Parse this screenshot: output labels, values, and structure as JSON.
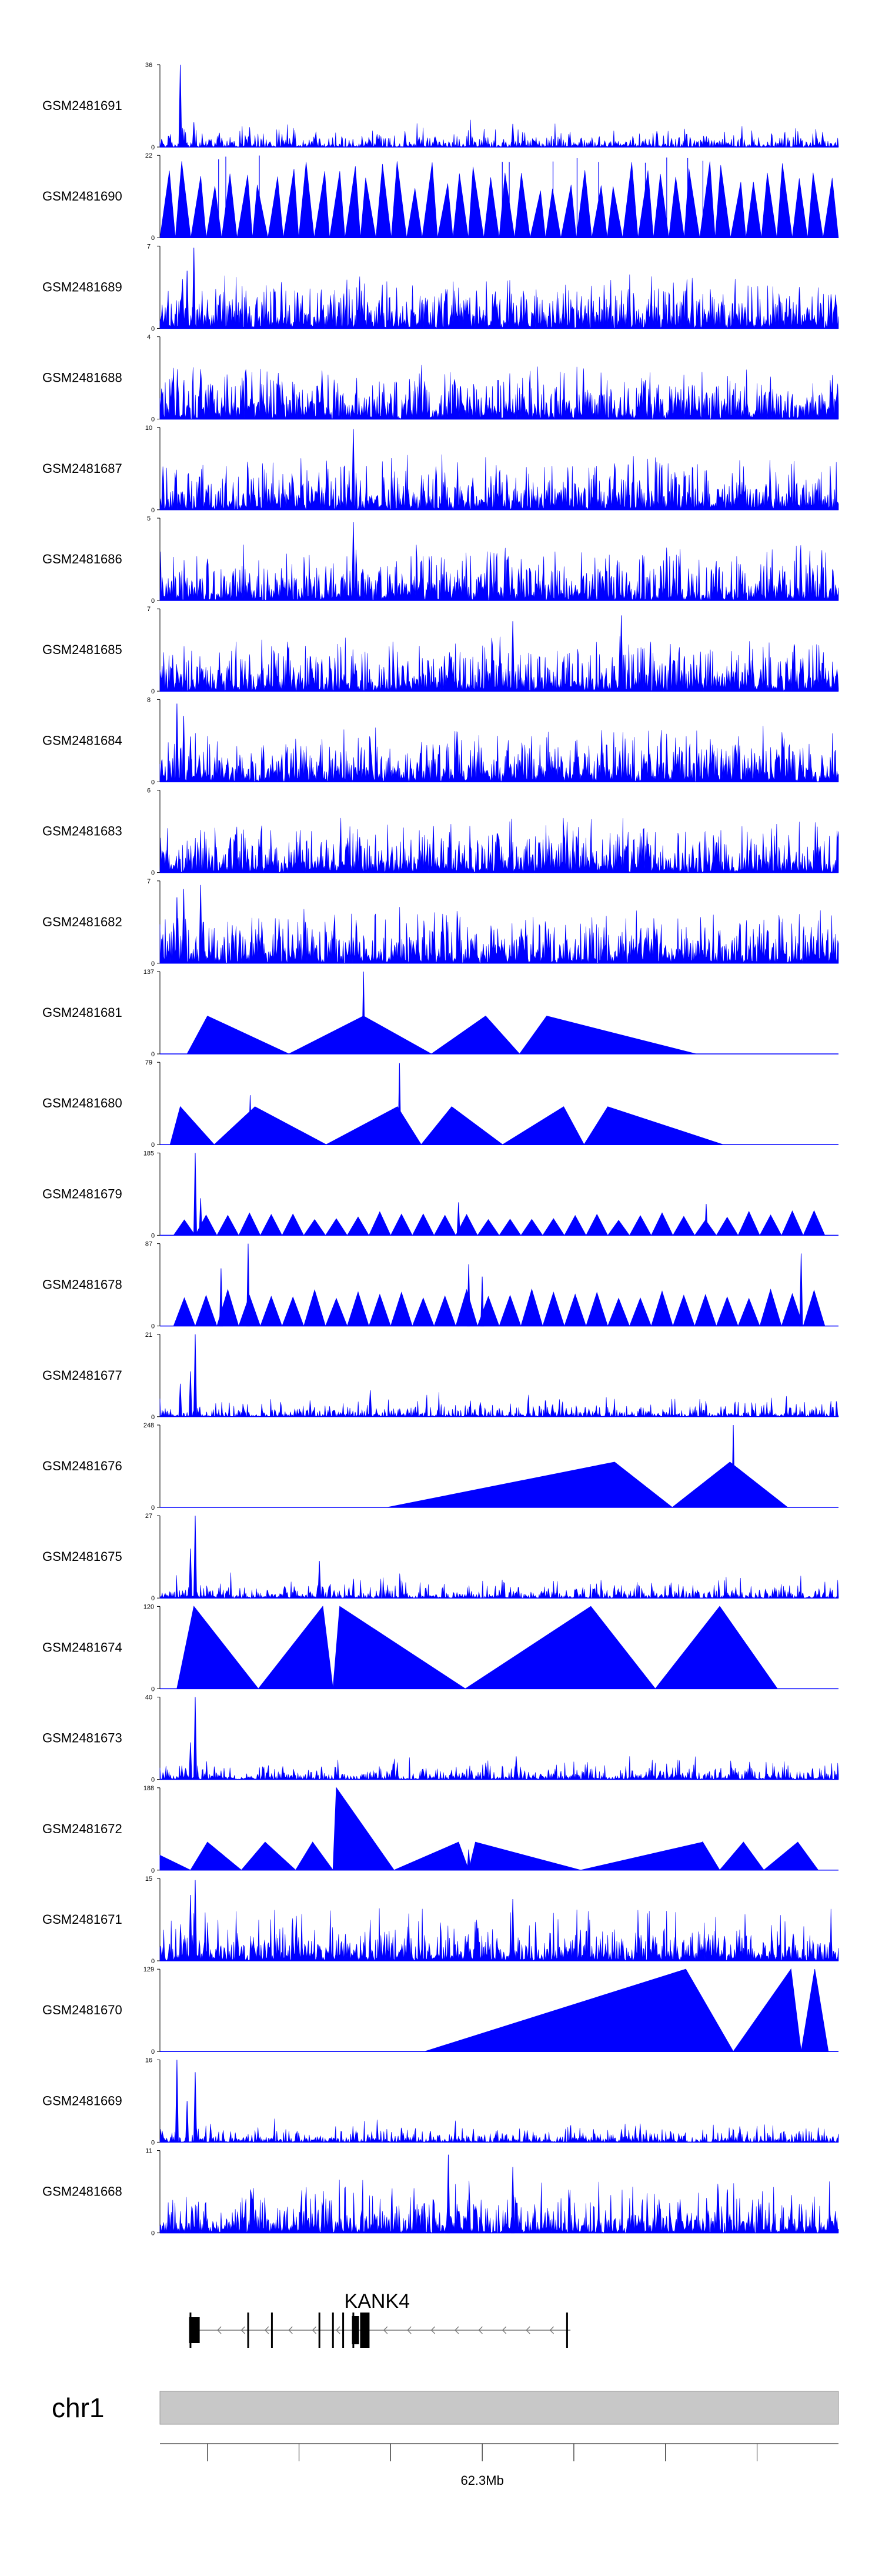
{
  "chart_data": {
    "type": "area",
    "fill_color": "#0000ff",
    "baseline_color": "#000000",
    "tracks": [
      {
        "name": "GSM2481691",
        "ymax": "36",
        "ymin": "0",
        "pattern": "spiky",
        "peaks": [
          [
            0.03,
            1.0
          ],
          [
            0.05,
            0.3
          ],
          [
            0.52,
            0.28
          ]
        ]
      },
      {
        "name": "GSM2481690",
        "ymax": "22",
        "ymin": "0",
        "pattern": "triangles_dense"
      },
      {
        "name": "GSM2481689",
        "ymax": "7",
        "ymin": "0",
        "pattern": "spiky",
        "peaks": [
          [
            0.05,
            0.98
          ],
          [
            0.04,
            0.7
          ]
        ]
      },
      {
        "name": "GSM2481688",
        "ymax": "4",
        "ymin": "0",
        "pattern": "spiky"
      },
      {
        "name": "GSM2481687",
        "ymax": "10",
        "ymin": "0",
        "pattern": "spiky",
        "peaks": [
          [
            0.285,
            0.98
          ],
          [
            0.69,
            0.55
          ]
        ]
      },
      {
        "name": "GSM2481686",
        "ymax": "5",
        "ymin": "0",
        "pattern": "spiky",
        "peaks": [
          [
            0.285,
            0.95
          ]
        ]
      },
      {
        "name": "GSM2481685",
        "ymax": "7",
        "ymin": "0",
        "pattern": "spiky",
        "peaks": [
          [
            0.68,
            0.92
          ],
          [
            0.52,
            0.85
          ]
        ]
      },
      {
        "name": "GSM2481684",
        "ymax": "8",
        "ymin": "0",
        "pattern": "spiky",
        "peaks": [
          [
            0.025,
            0.95
          ],
          [
            0.035,
            0.8
          ],
          [
            0.045,
            0.55
          ]
        ]
      },
      {
        "name": "GSM2481683",
        "ymax": "6",
        "ymin": "0",
        "pattern": "spiky"
      },
      {
        "name": "GSM2481682",
        "ymax": "7",
        "ymin": "0",
        "pattern": "spiky",
        "peaks": [
          [
            0.025,
            0.8
          ],
          [
            0.035,
            0.9
          ],
          [
            0.06,
            0.95
          ]
        ]
      },
      {
        "name": "GSM2481681",
        "ymax": "137",
        "ymin": "0",
        "pattern": "triangles",
        "triangles": [
          [
            0.04,
            0.07,
            0.19,
            0.46
          ],
          [
            0.19,
            0.3,
            0.4,
            0.46
          ],
          [
            0.4,
            0.48,
            0.53,
            0.46
          ],
          [
            0.53,
            0.57,
            0.79,
            0.46
          ]
        ],
        "peaks": [
          [
            0.3,
            1.0
          ]
        ]
      },
      {
        "name": "GSM2481680",
        "ymax": "79",
        "ymin": "0",
        "pattern": "triangles",
        "triangles": [
          [
            0.015,
            0.03,
            0.08,
            0.46
          ],
          [
            0.08,
            0.14,
            0.245,
            0.46
          ],
          [
            0.245,
            0.35,
            0.385,
            0.46
          ],
          [
            0.385,
            0.43,
            0.505,
            0.46
          ],
          [
            0.505,
            0.595,
            0.625,
            0.46
          ],
          [
            0.625,
            0.66,
            0.83,
            0.46
          ]
        ],
        "peaks": [
          [
            0.353,
            0.99
          ],
          [
            0.133,
            0.6
          ]
        ]
      },
      {
        "name": "GSM2481679",
        "ymax": "185",
        "ymin": "0",
        "pattern": "triangles_small",
        "peaks": [
          [
            0.052,
            1.0
          ],
          [
            0.06,
            0.45
          ],
          [
            0.44,
            0.4
          ],
          [
            0.805,
            0.38
          ]
        ]
      },
      {
        "name": "GSM2481678",
        "ymax": "87",
        "ymin": "0",
        "pattern": "triangles_small",
        "peaks": [
          [
            0.13,
            1.0
          ],
          [
            0.09,
            0.7
          ],
          [
            0.455,
            0.75
          ],
          [
            0.475,
            0.6
          ],
          [
            0.945,
            0.88
          ]
        ]
      },
      {
        "name": "GSM2481677",
        "ymax": "21",
        "ymin": "0",
        "pattern": "spiky",
        "peaks": [
          [
            0.052,
            1.0
          ],
          [
            0.045,
            0.55
          ],
          [
            0.03,
            0.4
          ],
          [
            0.31,
            0.32
          ]
        ]
      },
      {
        "name": "GSM2481676",
        "ymax": "248",
        "ymin": "0",
        "pattern": "triangles",
        "triangles": [
          [
            0.335,
            0.67,
            0.755,
            0.55
          ],
          [
            0.755,
            0.84,
            0.925,
            0.55
          ]
        ],
        "peaks": [
          [
            0.845,
            1.0
          ]
        ]
      },
      {
        "name": "GSM2481675",
        "ymax": "27",
        "ymin": "0",
        "pattern": "spiky",
        "peaks": [
          [
            0.052,
            1.0
          ],
          [
            0.045,
            0.6
          ],
          [
            0.235,
            0.45
          ]
        ]
      },
      {
        "name": "GSM2481674",
        "ymax": "120",
        "ymin": "0",
        "pattern": "triangles",
        "triangles": [
          [
            0.025,
            0.05,
            0.145,
            1.0
          ],
          [
            0.145,
            0.24,
            0.255,
            1.0
          ],
          [
            0.255,
            0.265,
            0.45,
            1.0
          ],
          [
            0.45,
            0.635,
            0.73,
            1.0
          ],
          [
            0.73,
            0.825,
            0.91,
            1.0
          ]
        ]
      },
      {
        "name": "GSM2481673",
        "ymax": "40",
        "ymin": "0",
        "pattern": "spiky",
        "peaks": [
          [
            0.052,
            1.0
          ],
          [
            0.045,
            0.45
          ],
          [
            0.525,
            0.28
          ]
        ]
      },
      {
        "name": "GSM2481672",
        "ymax": "188",
        "ymin": "0",
        "pattern": "triangles_mixed",
        "triangles": [
          [
            0.0,
            0.0,
            0.045,
            0.18
          ],
          [
            0.045,
            0.07,
            0.12,
            0.34
          ],
          [
            0.12,
            0.155,
            0.2,
            0.34
          ],
          [
            0.2,
            0.225,
            0.255,
            0.34
          ],
          [
            0.255,
            0.26,
            0.345,
            1.0
          ],
          [
            0.345,
            0.44,
            0.455,
            0.34
          ],
          [
            0.455,
            0.465,
            0.62,
            0.34
          ],
          [
            0.62,
            0.8,
            0.825,
            0.34
          ],
          [
            0.825,
            0.86,
            0.89,
            0.34
          ],
          [
            0.89,
            0.94,
            0.97,
            0.34
          ]
        ],
        "peaks": [
          [
            0.8,
            0.35
          ],
          [
            0.455,
            0.25
          ]
        ]
      },
      {
        "name": "GSM2481671",
        "ymax": "15",
        "ymin": "0",
        "pattern": "triangles_dense_small",
        "peaks": [
          [
            0.052,
            0.98
          ],
          [
            0.045,
            0.8
          ],
          [
            0.52,
            0.75
          ]
        ]
      },
      {
        "name": "GSM2481670",
        "ymax": "129",
        "ymin": "0",
        "pattern": "triangles",
        "triangles": [
          [
            0.39,
            0.775,
            0.845,
            1.0
          ],
          [
            0.845,
            0.93,
            0.945,
            1.0
          ],
          [
            0.945,
            0.965,
            0.985,
            1.0
          ]
        ]
      },
      {
        "name": "GSM2481669",
        "ymax": "16",
        "ymin": "0",
        "pattern": "spiky",
        "peaks": [
          [
            0.025,
            1.0
          ],
          [
            0.052,
            0.85
          ],
          [
            0.04,
            0.5
          ]
        ]
      },
      {
        "name": "GSM2481668",
        "ymax": "11",
        "ymin": "0",
        "pattern": "spiky",
        "peaks": [
          [
            0.425,
            0.95
          ],
          [
            0.52,
            0.8
          ]
        ]
      }
    ],
    "gene": {
      "name": "KANK4",
      "strand": "-",
      "exons": [
        [
          0.045,
          0.06
        ],
        [
          0.31,
          0.32
        ],
        [
          0.3,
          0.31
        ],
        [
          0.295,
          0.3
        ]
      ],
      "start": 0.045,
      "end": 0.605
    },
    "ideogram": {
      "chrom": "chr1",
      "color": "#c8c8c8",
      "position_label": "62.3Mb"
    }
  }
}
